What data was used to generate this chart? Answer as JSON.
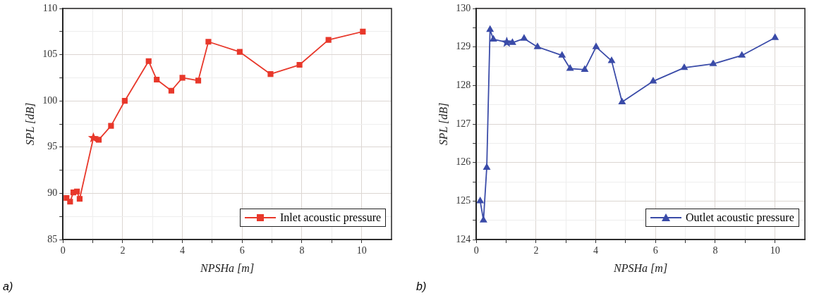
{
  "chart_data": [
    {
      "type": "line",
      "xlabel": "NPSHa [m]",
      "ylabel": "SPL [dB]",
      "annotations": [
        "a)"
      ],
      "xlim": [
        0,
        11
      ],
      "xticks": [
        0,
        {
          "value": 1,
          "label": null
        },
        2,
        {
          "value": 3,
          "label": null
        },
        4,
        {
          "value": 5,
          "label": null
        },
        6,
        {
          "value": 7,
          "label": null
        },
        8,
        {
          "value": 9,
          "label": null
        },
        10
      ],
      "ylim": [
        85,
        110
      ],
      "yticks": [
        85,
        {
          "value": 87.5,
          "label": null
        },
        90,
        {
          "value": 92.5,
          "label": null
        },
        95,
        {
          "value": 97.5,
          "label": null
        },
        100,
        {
          "value": 102.5,
          "label": null
        },
        105,
        {
          "value": 107.5,
          "label": null
        },
        110
      ],
      "grid": true,
      "legend": "bottom right",
      "marker": "square",
      "line_style": "solid",
      "series": [
        {
          "name": "Inlet acoustic pressure",
          "color": "#e8382b",
          "x": [
            0.12,
            0.24,
            0.35,
            0.47,
            0.56,
            1.02,
            1.2,
            1.61,
            2.07,
            2.87,
            3.14,
            3.63,
            4.0,
            4.53,
            4.87,
            5.92,
            6.95,
            7.92,
            8.89,
            10.04
          ],
          "values": [
            89.5,
            89.1,
            90.1,
            90.2,
            89.4,
            96.0,
            95.8,
            97.3,
            100.0,
            104.3,
            102.3,
            101.1,
            102.5,
            102.2,
            106.4,
            105.3,
            102.9,
            103.9,
            106.6,
            107.5
          ]
        },
        {
          "type": "scatter",
          "marker": "star",
          "color": "#e8382b",
          "x": [
            1.02
          ],
          "values": [
            96.0
          ]
        }
      ]
    },
    {
      "type": "line",
      "xlabel": "NPSHa [m]",
      "ylabel": "SPL [dB]",
      "annotations": [
        "b)"
      ],
      "xlim": [
        0,
        11
      ],
      "xticks": [
        0,
        {
          "value": 1,
          "label": null
        },
        2,
        {
          "value": 3,
          "label": null
        },
        4,
        {
          "value": 5,
          "label": null
        },
        6,
        {
          "value": 7,
          "label": null
        },
        8,
        {
          "value": 9,
          "label": null
        },
        10
      ],
      "ylim": [
        124,
        130
      ],
      "yticks": [
        124,
        {
          "value": 124.5,
          "label": null
        },
        125,
        {
          "value": 125.5,
          "label": null
        },
        126,
        {
          "value": 126.5,
          "label": null
        },
        127,
        {
          "value": 127.5,
          "label": null
        },
        128,
        {
          "value": 128.5,
          "label": null
        },
        129,
        {
          "value": 129.5,
          "label": null
        },
        130
      ],
      "grid": true,
      "legend": "bottom right",
      "marker": "triangle",
      "line_style": "solid",
      "series": [
        {
          "name": "Outlet acoustic pressure",
          "color": "#3a4ba8",
          "x": [
            0.13,
            0.24,
            0.35,
            0.46,
            0.57,
            1.02,
            1.21,
            1.6,
            2.05,
            2.87,
            3.14,
            3.63,
            4.01,
            4.53,
            4.88,
            5.92,
            6.96,
            7.93,
            8.89,
            10.0
          ],
          "values": [
            125.0,
            124.5,
            125.87,
            129.45,
            129.2,
            129.12,
            129.11,
            129.22,
            129.0,
            128.78,
            128.44,
            128.41,
            129.0,
            128.64,
            127.57,
            128.11,
            128.46,
            128.56,
            128.78,
            129.24
          ]
        },
        {
          "type": "scatter",
          "marker": "star",
          "color": "#3a4ba8",
          "x": [
            1.02
          ],
          "values": [
            129.12
          ]
        }
      ]
    }
  ]
}
